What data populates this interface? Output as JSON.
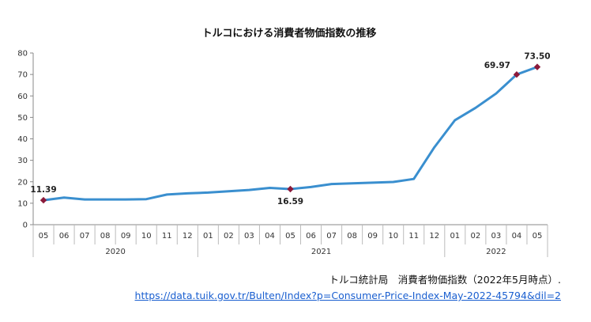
{
  "chart_data": {
    "type": "line",
    "title": "トルコにおける消費者物価指数の推移",
    "ylim": [
      0,
      80
    ],
    "yticks": [
      0,
      10,
      20,
      30,
      40,
      50,
      60,
      70,
      80
    ],
    "grid": false,
    "line_color": "#3a8fcf",
    "marker_color": "#8b1a3a",
    "months": [
      "05",
      "06",
      "07",
      "08",
      "09",
      "10",
      "11",
      "12",
      "01",
      "02",
      "03",
      "04",
      "05",
      "06",
      "07",
      "08",
      "09",
      "10",
      "11",
      "12",
      "01",
      "02",
      "03",
      "04",
      "05"
    ],
    "years": [
      {
        "label": "2020",
        "start": 0,
        "end": 7
      },
      {
        "label": "2021",
        "start": 8,
        "end": 19
      },
      {
        "label": "2022",
        "start": 20,
        "end": 24
      }
    ],
    "values": [
      11.39,
      12.62,
      11.76,
      11.77,
      11.75,
      11.89,
      14.03,
      14.6,
      14.97,
      15.61,
      16.19,
      17.14,
      16.59,
      17.53,
      18.95,
      19.25,
      19.58,
      19.89,
      21.31,
      36.08,
      48.69,
      54.44,
      61.14,
      69.97,
      73.5
    ],
    "annotations": [
      {
        "index": 0,
        "label": "11.39",
        "pos": "above"
      },
      {
        "index": 12,
        "label": "16.59",
        "pos": "below"
      },
      {
        "index": 23,
        "label": "69.97",
        "pos": "left"
      },
      {
        "index": 24,
        "label": "73.50",
        "pos": "above"
      }
    ]
  },
  "source": {
    "text": "トルコ統計局　消費者物価指数（2022年5月時点）.",
    "url": "https://data.tuik.gov.tr/Bulten/Index?p=Consumer-Price-Index-May-2022-45794&dil=2"
  }
}
